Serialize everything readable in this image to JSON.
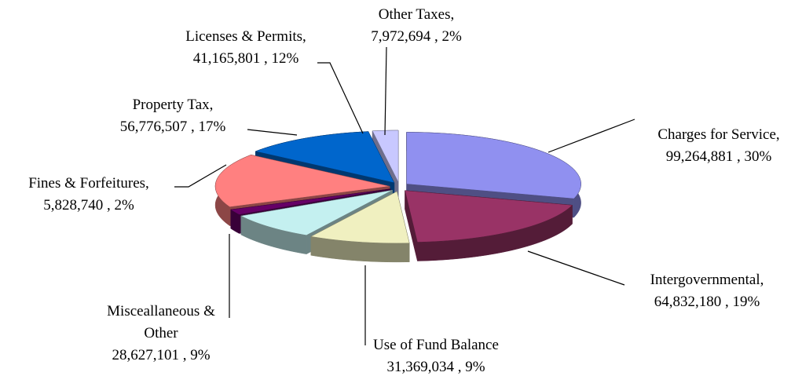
{
  "chart_data": {
    "type": "pie3d",
    "categories": [
      "Charges for Service,",
      "Intergovernmental,",
      "Use of Fund Balance",
      "Misceallaneous & Other",
      "Fines & Forfeitures,",
      "Property Tax,",
      "Licenses & Permits,",
      "Other Taxes,"
    ],
    "values": [
      99264881,
      64832180,
      31369034,
      28627101,
      5828740,
      56776507,
      41165801,
      7972694
    ],
    "value_labels": [
      "99,264,881 , 30%",
      "64,832,180 , 19%",
      "31,369,034 , 9%",
      "28,627,101 , 9%",
      "5,828,740 , 2%",
      "56,776,507 , 17%",
      "41,165,801 , 12%",
      "7,972,694 , 2%"
    ],
    "colors": [
      "#9090f0",
      "#993366",
      "#f0f0c0",
      "#c4f0f0",
      "#660066",
      "#ff8080",
      "#0066cc",
      "#c8c8ff"
    ]
  }
}
